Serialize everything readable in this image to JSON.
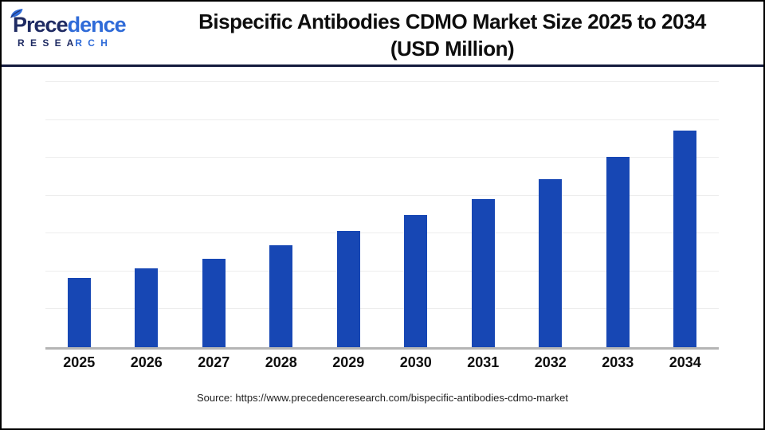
{
  "header": {
    "title": "Bispecific Antibodies CDMO Market Size 2025 to 2034",
    "subtitle": "(USD Million)"
  },
  "logo": {
    "name_part1": "Prece",
    "name_part2": "dence",
    "sub_part1": "R E S E A",
    "sub_part2": "R C H",
    "navy_color": "#1f2b63",
    "blue_color": "#2f6bd8"
  },
  "footer": {
    "source": "Source: https://www.precedenceresearch.com/bispecific-antibodies-cdmo-market"
  },
  "chart_data": {
    "type": "bar",
    "title": "Bispecific Antibodies CDMO Market Size 2025 to 2034",
    "subtitle": "(USD Million)",
    "categories": [
      "2025",
      "2026",
      "2027",
      "2028",
      "2029",
      "2030",
      "2031",
      "2032",
      "2033",
      "2034"
    ],
    "values": [
      1830,
      2080,
      2330,
      2700,
      3060,
      3480,
      3920,
      4440,
      5020,
      5710
    ],
    "unit": "USD Million",
    "value_note": "Y-axis has no visible tick labels; values estimated from bar heights assuming one gridline interval = 1000",
    "ylim": [
      0,
      7000
    ],
    "gridline_interval": 1000,
    "grid": true,
    "y_axis_labels_visible": false,
    "legend_position": "none",
    "bar_color": "#1747b4",
    "axis_line_color": "#b5b5b5",
    "gridline_color": "#ededed",
    "xlabel": "",
    "ylabel": ""
  }
}
